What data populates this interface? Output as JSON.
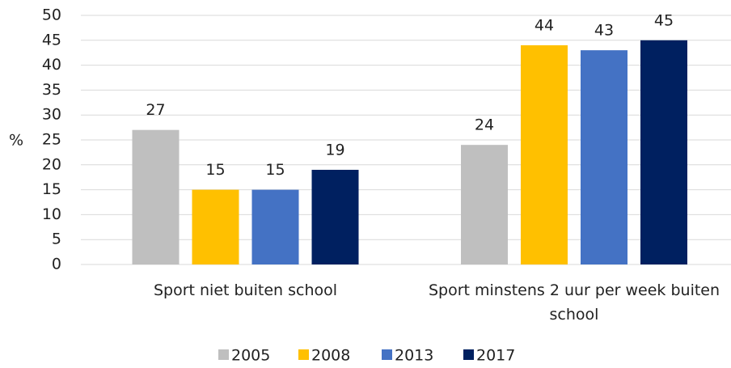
{
  "chart_data": {
    "type": "bar",
    "categories": [
      "Sport niet buiten school",
      "Sport minstens 2 uur per week buiten school"
    ],
    "series": [
      {
        "name": "2005",
        "color": "#bfbfbf",
        "values": [
          27,
          24
        ]
      },
      {
        "name": "2008",
        "color": "#ffc000",
        "values": [
          15,
          44
        ]
      },
      {
        "name": "2013",
        "color": "#4472c4",
        "values": [
          15,
          43
        ]
      },
      {
        "name": "2017",
        "color": "#002060",
        "values": [
          19,
          45
        ]
      }
    ],
    "ylabel": "%",
    "ylim": [
      0,
      50
    ],
    "yticks": [
      0,
      5,
      10,
      15,
      20,
      25,
      30,
      35,
      40,
      45,
      50
    ],
    "grid": true,
    "legend": "bottom"
  }
}
